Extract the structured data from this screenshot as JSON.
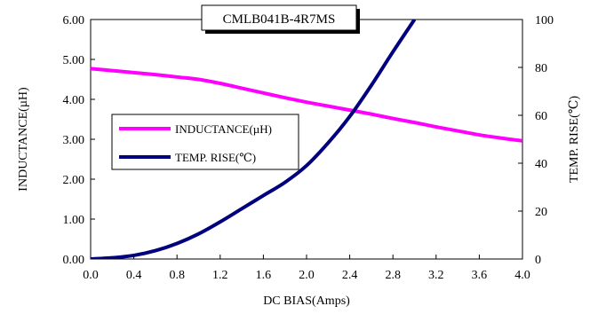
{
  "chart_data": {
    "type": "line",
    "title": "CMLB041B-4R7MS",
    "xlabel": "DC BIAS(Amps)",
    "ylabel": "INDUCTANCE(µH)",
    "y2label": "TEMP. RISE(℃)",
    "xlim": [
      0,
      4.0
    ],
    "ylim": [
      0,
      6.0
    ],
    "y2lim": [
      0,
      100
    ],
    "x_ticks": [
      "0.0",
      "0.4",
      "0.8",
      "1.2",
      "1.6",
      "2.0",
      "2.4",
      "2.8",
      "3.2",
      "3.6",
      "4.0"
    ],
    "y_ticks": [
      "0.00",
      "1.00",
      "2.00",
      "3.00",
      "4.00",
      "5.00",
      "6.00"
    ],
    "y2_ticks": [
      "0",
      "20",
      "40",
      "60",
      "80",
      "100"
    ],
    "legend_position": "center-left",
    "grid": false,
    "series": [
      {
        "name": "INDUCTANCE(µH)",
        "axis": "left",
        "color": "#ff00ff",
        "x": [
          0.0,
          0.2,
          0.4,
          0.6,
          0.8,
          1.0,
          1.2,
          1.4,
          1.6,
          1.8,
          2.0,
          2.2,
          2.4,
          2.6,
          2.8,
          3.0,
          3.2,
          3.4,
          3.6,
          3.8,
          4.0
        ],
        "y": [
          4.77,
          4.72,
          4.67,
          4.62,
          4.56,
          4.5,
          4.4,
          4.28,
          4.16,
          4.04,
          3.93,
          3.83,
          3.73,
          3.63,
          3.52,
          3.42,
          3.31,
          3.21,
          3.11,
          3.03,
          2.96
        ]
      },
      {
        "name": "TEMP. RISE(℃)",
        "axis": "right",
        "color": "#00007f",
        "x": [
          0.0,
          0.2,
          0.4,
          0.6,
          0.8,
          1.0,
          1.2,
          1.4,
          1.6,
          1.8,
          2.0,
          2.2,
          2.4,
          2.6,
          2.8,
          3.0
        ],
        "y": [
          0,
          0.5,
          1.5,
          3.5,
          6.5,
          10.5,
          15.5,
          21,
          26.5,
          32,
          39,
          48.5,
          59.5,
          72.5,
          86.5,
          100
        ]
      }
    ]
  }
}
